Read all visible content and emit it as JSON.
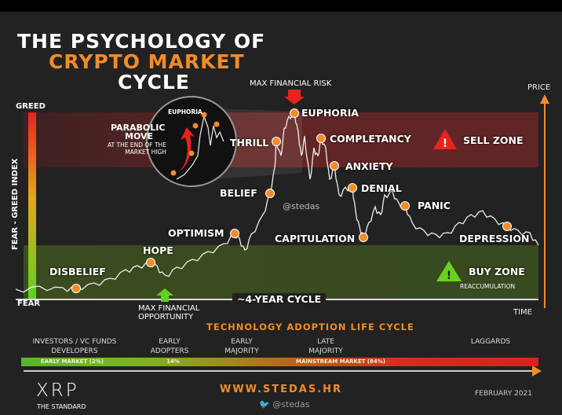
{
  "title": {
    "line1": "THE PSYCHOLOGY OF",
    "line2": "CRYPTO MARKET",
    "line3": "CYCLE"
  },
  "axes": {
    "greed": "GREED",
    "fear": "FEAR",
    "index": "FEAR - GREED INDEX",
    "price": "PRICE",
    "time": "TIME",
    "cycle": "~4-YEAR CYCLE"
  },
  "annotations": {
    "max_risk": "MAX FINANCIAL RISK",
    "max_opportunity_1": "MAX FINANCIAL",
    "max_opportunity_2": "OPPORTUNITY",
    "watermark": "@stedas"
  },
  "zones": {
    "sell": "SELL ZONE",
    "buy": "BUY ZONE",
    "buy_sub": "REACCUMULATION"
  },
  "inset": {
    "euphoria": "EUPHORIA",
    "parabolic_1": "PARABOLIC",
    "parabolic_2": "MOVE",
    "parabolic_3": "AT THE END OF THE",
    "parabolic_4": "MARKET HIGH"
  },
  "stages": [
    {
      "label": "DISBELIEF"
    },
    {
      "label": "HOPE"
    },
    {
      "label": "OPTIMISM"
    },
    {
      "label": "BELIEF"
    },
    {
      "label": "THRILL"
    },
    {
      "label": "EUPHORIA"
    },
    {
      "label": "COMPLETANCY"
    },
    {
      "label": "ANXIETY"
    },
    {
      "label": "DENIAL"
    },
    {
      "label": "CAPITULATION"
    },
    {
      "label": "PANIC"
    },
    {
      "label": "DEPRESSION"
    }
  ],
  "adoption": {
    "title": "TECHNOLOGY ADOPTION LIFE CYCLE",
    "groups": [
      "INVESTORS / VC FUNDS\nDEVELOPERS",
      "EARLY\nADOPTERS",
      "EARLY\nMAJORITY",
      "LATE\nMAJORITY",
      "LAGGARDS"
    ],
    "bar": {
      "early_market": "EARLY MARKET (2%)",
      "adopters_pct": "14%",
      "mainstream": "MAINSTREAM MARKET (84%)"
    }
  },
  "footer": {
    "logo": "XRP",
    "logo_sub": "THE STANDARD",
    "website": "WWW.STEDAS.HR",
    "twitter": "@stedas",
    "date": "FEBRUARY 2021"
  },
  "colors": {
    "accent": "#f28c28",
    "sell": "#d62a22",
    "buy": "#5fd11e",
    "background": "#222222"
  }
}
